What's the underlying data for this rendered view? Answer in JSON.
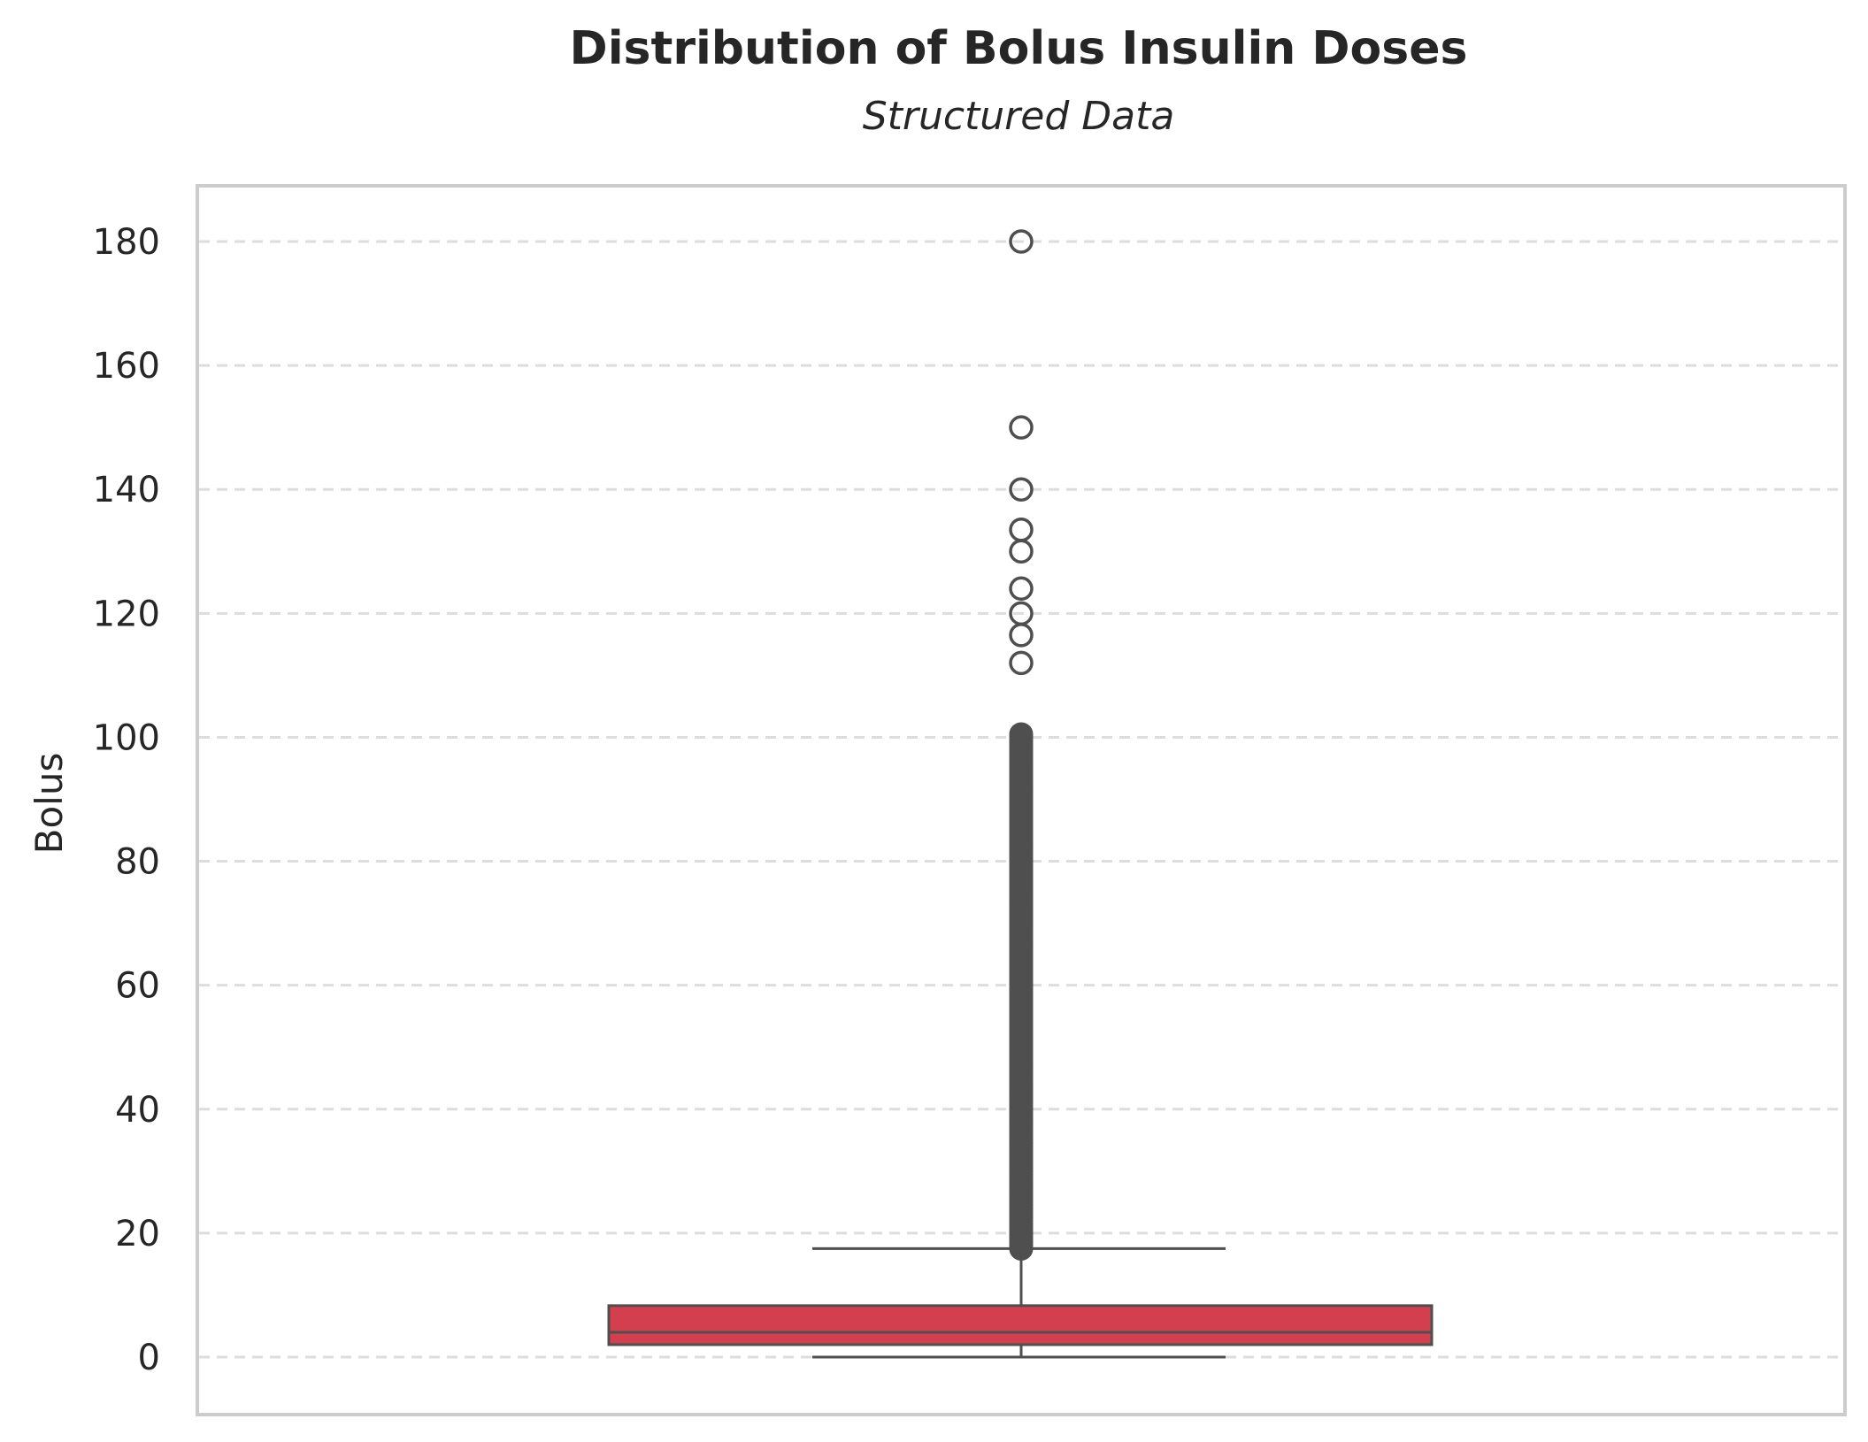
{
  "chart_data": {
    "type": "box",
    "title": "Distribution of Bolus Insulin Doses",
    "subtitle": "Structured Data",
    "xlabel": "",
    "ylabel": "Bolus",
    "ylim": [
      -9,
      189
    ],
    "yticks": [
      0,
      20,
      40,
      60,
      80,
      100,
      120,
      140,
      160,
      180
    ],
    "grid": "horizontal dashed",
    "box": {
      "min": 0,
      "q1": 2,
      "median": 4,
      "q3": 8.3,
      "whisker_low": 0,
      "whisker_high": 17.5,
      "color": "#d43f50"
    },
    "outliers_sparse": [
      180,
      150,
      140,
      133.5,
      130,
      124,
      120,
      116.5,
      112
    ],
    "outlier_dense_range": [
      17.5,
      100.5
    ]
  }
}
